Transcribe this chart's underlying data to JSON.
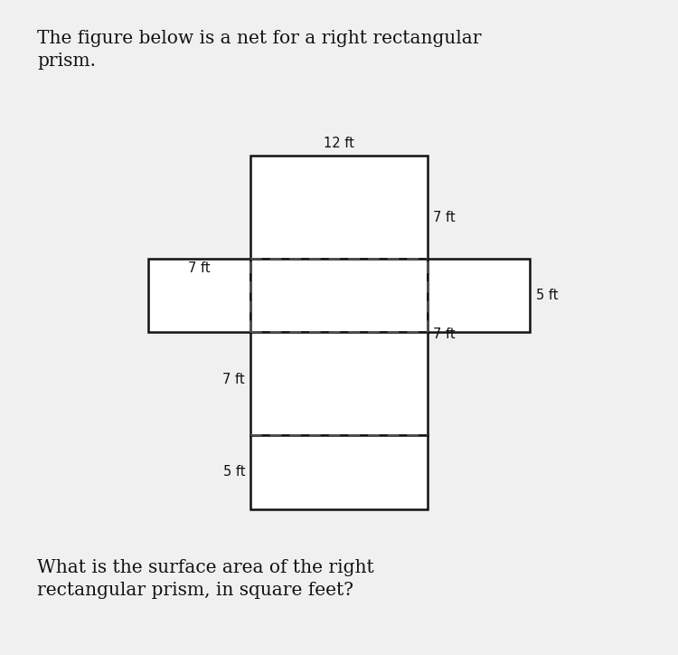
{
  "title": "The figure below is a net for a right rectangular\nprism.",
  "question": "What is the surface area of the right\nrectangular prism, in square feet?",
  "bg_color": "#f0f0f0",
  "rect_fill": "#ffffff",
  "rect_edge": "#111111",
  "dash_color": "#555555",
  "title_fontsize": 14.5,
  "question_fontsize": 14.5,
  "lw": 1.8,
  "labels": {
    "top_center": "12 ft",
    "top_right": "7 ft",
    "left_top": "7 ft",
    "right_right": "5 ft",
    "right_bottom": "7 ft",
    "lower_left": "7 ft",
    "bottom_left": "5 ft"
  }
}
